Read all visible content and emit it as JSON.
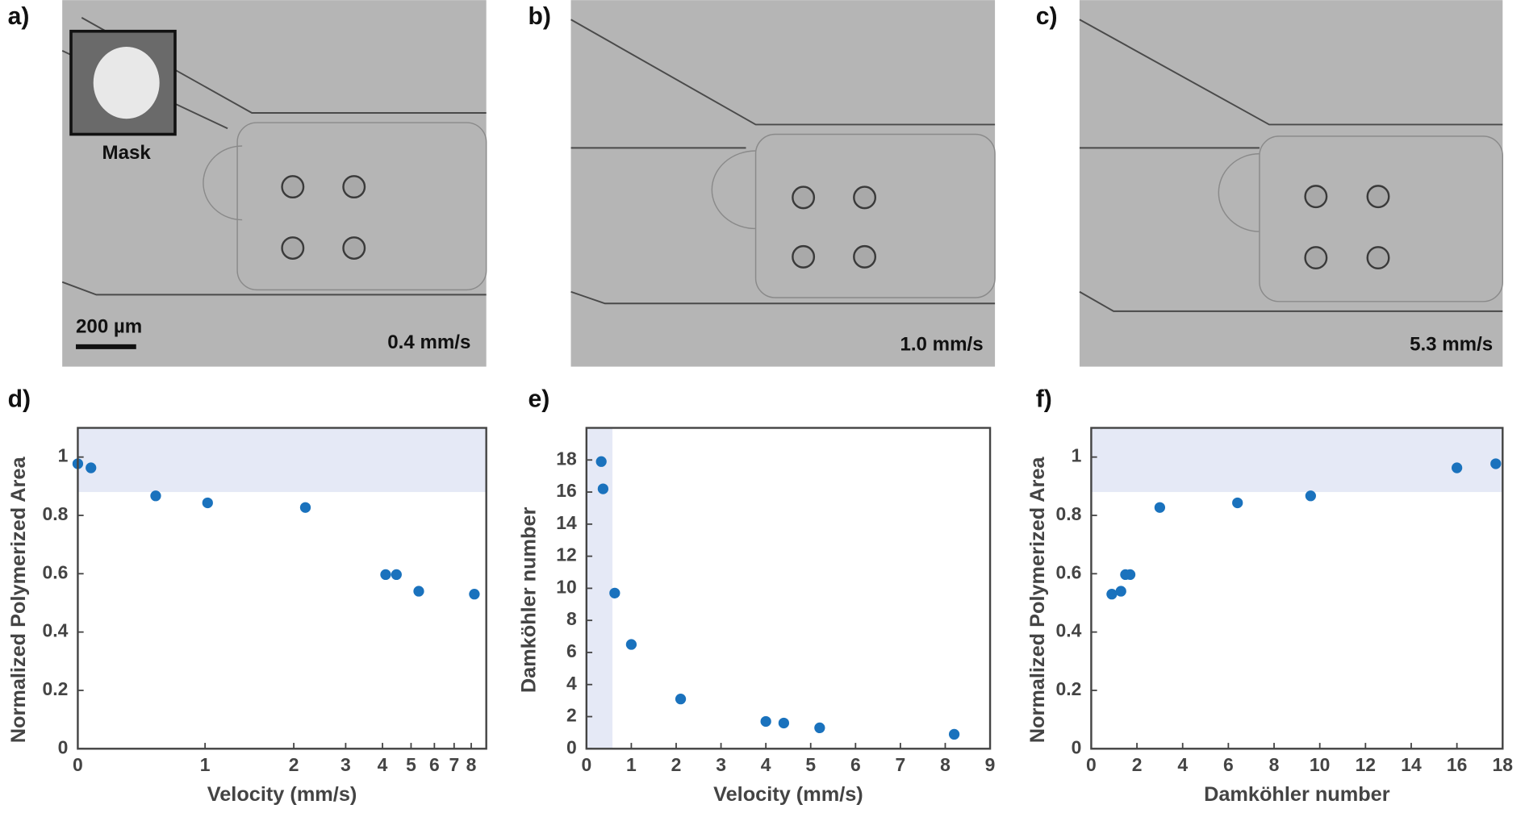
{
  "panels": [
    {
      "label": "a)",
      "caption": "0.4 mm/s",
      "inset_label": "Mask",
      "scale_bar": "200 µm"
    },
    {
      "label": "b)",
      "caption": "1.0 mm/s"
    },
    {
      "label": "c)",
      "caption": "5.3 mm/s"
    }
  ],
  "chart_data": [
    {
      "type": "scatter",
      "label": "d)",
      "xlabel": "Velocity (mm/s)",
      "ylabel": "Normalized Polymerized Area",
      "xscale": "log",
      "xlim": [
        0.37,
        9
      ],
      "ylim": [
        0,
        1.1
      ],
      "xticks": [
        {
          "value": 0.37,
          "label": "0"
        },
        1,
        2,
        3,
        4,
        5,
        6,
        7,
        8
      ],
      "yticks": [
        0,
        0.2,
        0.4,
        0.6,
        0.8,
        1
      ],
      "x": [
        0.37,
        0.41,
        0.68,
        1.02,
        2.19,
        4.1,
        4.46,
        5.31,
        8.2
      ],
      "values": [
        0.977,
        0.963,
        0.867,
        0.843,
        0.827,
        0.597,
        0.597,
        0.54,
        0.53
      ],
      "color": "#1a72bd",
      "highlight": {
        "y": [
          0.88,
          1.1
        ],
        "color": "#e5e9f6"
      }
    },
    {
      "type": "scatter",
      "label": "e)",
      "xlabel": "Velocity (mm/s)",
      "ylabel": "Damköhler number",
      "xlim": [
        0,
        9
      ],
      "ylim": [
        0,
        20
      ],
      "xticks": [
        0,
        1,
        2,
        3,
        4,
        5,
        6,
        7,
        8,
        9
      ],
      "yticks": [
        0,
        2,
        4,
        6,
        8,
        10,
        12,
        14,
        16,
        18
      ],
      "x": [
        0.33,
        0.37,
        0.63,
        1.0,
        2.1,
        4.0,
        4.4,
        5.2,
        8.2
      ],
      "values": [
        17.9,
        16.2,
        9.7,
        6.5,
        3.1,
        1.7,
        1.6,
        1.3,
        0.9
      ],
      "color": "#1a72bd",
      "highlight": {
        "x": [
          0,
          0.58
        ],
        "color": "#e5e9f6"
      }
    },
    {
      "type": "scatter",
      "label": "f)",
      "xlabel": "Damköhler number",
      "ylabel": "Normalized Polymerized Area",
      "xlim": [
        0,
        18
      ],
      "ylim": [
        0,
        1.1
      ],
      "xticks": [
        0,
        2,
        4,
        6,
        8,
        10,
        12,
        14,
        16,
        18
      ],
      "yticks": [
        0,
        0.2,
        0.4,
        0.6,
        0.8,
        1
      ],
      "x": [
        0.9,
        1.3,
        1.5,
        1.7,
        3.0,
        6.4,
        9.6,
        16.0,
        17.7
      ],
      "values": [
        0.53,
        0.54,
        0.597,
        0.597,
        0.827,
        0.843,
        0.867,
        0.963,
        0.977
      ],
      "color": "#1a72bd",
      "highlight": {
        "y": [
          0.88,
          1.1
        ],
        "color": "#e5e9f6"
      }
    }
  ]
}
